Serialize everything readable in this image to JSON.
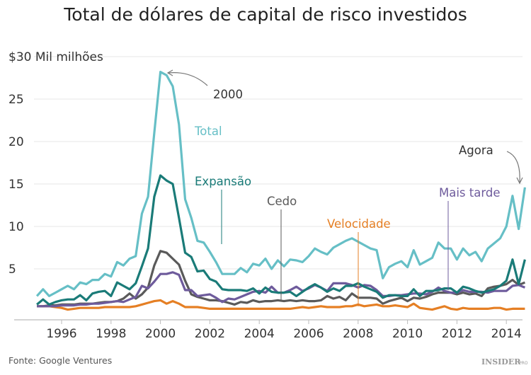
{
  "chart_data": {
    "type": "line",
    "title": "Total de dólares de capital de risco investidos",
    "ylabel": "$30 Mil milhões",
    "ylim": [
      -1,
      30
    ],
    "xlim": [
      1994.95,
      2014.8
    ],
    "yticks": [
      5,
      10,
      15,
      20,
      25
    ],
    "xticks": [
      1996,
      1998,
      2000,
      2002,
      2004,
      2006,
      2008,
      2010,
      2012,
      2014
    ],
    "grid": true,
    "x_start": 1995.0,
    "x_step": 0.25,
    "series": [
      {
        "name": "Total",
        "color": "#66bfc6",
        "values": [
          1.8,
          2.6,
          1.8,
          2.2,
          2.6,
          3.0,
          2.6,
          3.4,
          3.2,
          3.7,
          3.7,
          4.4,
          4.1,
          5.8,
          5.4,
          6.2,
          6.5,
          11.5,
          13.5,
          21,
          28.2,
          27.8,
          26.5,
          22,
          13.2,
          11,
          8.3,
          8.1,
          7,
          5.8,
          4.4,
          4.4,
          4.4,
          5.1,
          4.6,
          5.6,
          5.4,
          6.2,
          5.0,
          6.0,
          5.3,
          6.1,
          6.0,
          5.8,
          6.5,
          7.4,
          7.0,
          6.7,
          7.5,
          7.9,
          8.3,
          8.6,
          8.2,
          7.8,
          7.4,
          7.2,
          3.9,
          5.2,
          5.6,
          5.9,
          5.2,
          7.2,
          5.5,
          5.9,
          6.3,
          8.1,
          7.4,
          7.4,
          6.1,
          7.4,
          6.6,
          7.0,
          5.9,
          7.4,
          8.0,
          8.6,
          10,
          13.6,
          9.7,
          14.6
        ]
      },
      {
        "name": "Expansão",
        "color": "#1a7b78",
        "values": [
          0.8,
          1.4,
          0.8,
          1.1,
          1.3,
          1.4,
          1.4,
          1.9,
          1.3,
          2.1,
          2.3,
          2.4,
          1.8,
          3.4,
          3.0,
          2.6,
          3.3,
          5.3,
          7.4,
          13.5,
          16,
          15.4,
          15,
          11,
          6.9,
          6.4,
          4.7,
          4.8,
          3.8,
          3.5,
          2.6,
          2.5,
          2.5,
          2.5,
          2.4,
          2.7,
          2.1,
          2.8,
          2.3,
          2.2,
          2.2,
          2.3,
          1.8,
          2.3,
          2.8,
          3.2,
          2.8,
          2.3,
          2.7,
          2.4,
          3.0,
          3.0,
          3.3,
          2.9,
          2.6,
          2.3,
          1.6,
          1.9,
          1.9,
          1.8,
          1.8,
          2.6,
          1.8,
          2.4,
          2.4,
          2.5,
          2.7,
          2.7,
          2.2,
          2.9,
          2.7,
          2.4,
          2.2,
          2.4,
          2.6,
          3.0,
          3.6,
          6.1,
          3.2,
          6.1
        ]
      },
      {
        "name": "Cedo",
        "color": "#5a5a5a",
        "values": [
          0.6,
          0.6,
          0.7,
          0.7,
          0.8,
          0.8,
          0.8,
          0.9,
          0.9,
          0.9,
          1.0,
          1.1,
          1.1,
          1.2,
          1.5,
          2.1,
          1.5,
          2.0,
          2.8,
          5.4,
          7.1,
          6.9,
          6.2,
          5.5,
          3.6,
          2.0,
          1.7,
          1.5,
          1.3,
          1.3,
          1.2,
          1.0,
          0.8,
          1.1,
          1.0,
          1.3,
          1.1,
          1.2,
          1.2,
          1.3,
          1.2,
          1.3,
          1.2,
          1.3,
          1.2,
          1.2,
          1.3,
          1.8,
          1.5,
          1.7,
          1.3,
          2.1,
          1.6,
          1.6,
          1.6,
          1.5,
          0.9,
          1.2,
          1.4,
          1.6,
          1.2,
          1.6,
          1.5,
          1.7,
          2.0,
          2.2,
          2.2,
          2.2,
          2.0,
          2.2,
          2.0,
          2.1,
          1.8,
          2.7,
          2.9,
          3.0,
          3.2,
          3.7,
          3.1,
          3.4
        ]
      },
      {
        "name": "Mais tarde",
        "color": "#6e5b9c",
        "values": [
          0.6,
          0.6,
          0.6,
          0.6,
          0.7,
          0.7,
          0.7,
          0.8,
          0.8,
          0.9,
          0.9,
          1.0,
          1.1,
          1.2,
          1.1,
          1.4,
          1.7,
          3.0,
          2.7,
          3.5,
          4.4,
          4.4,
          4.6,
          4.3,
          2.5,
          2.5,
          1.8,
          1.9,
          2.0,
          1.6,
          1.1,
          1.5,
          1.4,
          1.7,
          2.0,
          2.3,
          2.4,
          2.2,
          2.9,
          2.2,
          2.2,
          2.5,
          2.9,
          2.4,
          2.7,
          3.1,
          2.8,
          2.4,
          3.3,
          3.3,
          3.3,
          3.1,
          2.8,
          3.1,
          3.0,
          2.5,
          1.8,
          1.8,
          1.9,
          1.9,
          2.0,
          2.1,
          2.1,
          2.0,
          2.3,
          2.8,
          2.4,
          2.2,
          2.2,
          2.5,
          2.3,
          2.3,
          2.3,
          2.2,
          2.4,
          2.4,
          2.4,
          3.0,
          3.1,
          2.8
        ]
      },
      {
        "name": "Velocidade",
        "color": "#e57f24",
        "values": [
          0.6,
          0.6,
          0.6,
          0.5,
          0.4,
          0.2,
          0.3,
          0.4,
          0.4,
          0.4,
          0.4,
          0.5,
          0.5,
          0.5,
          0.5,
          0.5,
          0.6,
          0.8,
          1.0,
          1.2,
          1.3,
          0.9,
          1.2,
          0.9,
          0.5,
          0.5,
          0.5,
          0.4,
          0.3,
          0.3,
          0.3,
          0.3,
          0.3,
          0.3,
          0.3,
          0.3,
          0.3,
          0.3,
          0.3,
          0.3,
          0.3,
          0.3,
          0.4,
          0.5,
          0.4,
          0.5,
          0.6,
          0.5,
          0.5,
          0.5,
          0.6,
          0.6,
          0.8,
          0.6,
          0.7,
          0.8,
          0.6,
          0.6,
          0.7,
          0.6,
          0.5,
          0.9,
          0.4,
          0.3,
          0.2,
          0.4,
          0.6,
          0.3,
          0.2,
          0.4,
          0.3,
          0.3,
          0.3,
          0.3,
          0.4,
          0.4,
          0.2,
          0.3,
          0.3,
          0.3
        ]
      }
    ],
    "annotations": {
      "peak": "2000",
      "now": "Agora"
    },
    "source": "Fonte: Google Ventures",
    "logo": "INSIDER PRO"
  }
}
